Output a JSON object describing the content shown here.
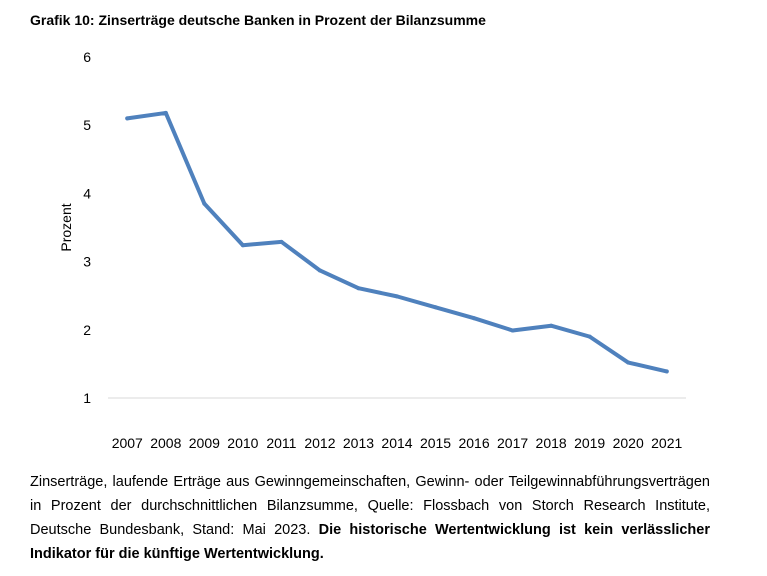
{
  "title": "Grafik 10: Zinserträge deutsche Banken in Prozent der Bilanzsumme",
  "caption": {
    "text": "Zinserträge, laufende Erträge aus Gewinngemeinschaften, Gewinn- oder Teilgewinnabführungsverträgen in Prozent der durchschnittlichen Bilanzsumme, Quelle: Flossbach von Storch Research Institute, Deutsche Bundesbank, Stand: Mai 2023.",
    "bold": "Die historische Wertentwicklung ist kein verlässlicher Indikator für die künftige Wertentwicklung."
  },
  "chart_data": {
    "type": "line",
    "title": "Grafik 10: Zinserträge deutsche Banken in Prozent der Bilanzsumme",
    "xlabel": "",
    "ylabel": "Prozent",
    "categories": [
      "2007",
      "2008",
      "2009",
      "2010",
      "2011",
      "2012",
      "2013",
      "2014",
      "2015",
      "2016",
      "2017",
      "2018",
      "2019",
      "2020",
      "2021"
    ],
    "series": [
      {
        "values": [
          5.1,
          5.18,
          3.85,
          3.24,
          3.29,
          2.87,
          2.61,
          2.49,
          2.33,
          2.17,
          1.99,
          2.06,
          1.9,
          1.52,
          1.39
        ]
      }
    ],
    "ylim": [
      1,
      6
    ],
    "yticks": [
      1,
      2,
      3,
      4,
      5,
      6
    ],
    "grid": false,
    "line_color": "#4F81BD"
  }
}
